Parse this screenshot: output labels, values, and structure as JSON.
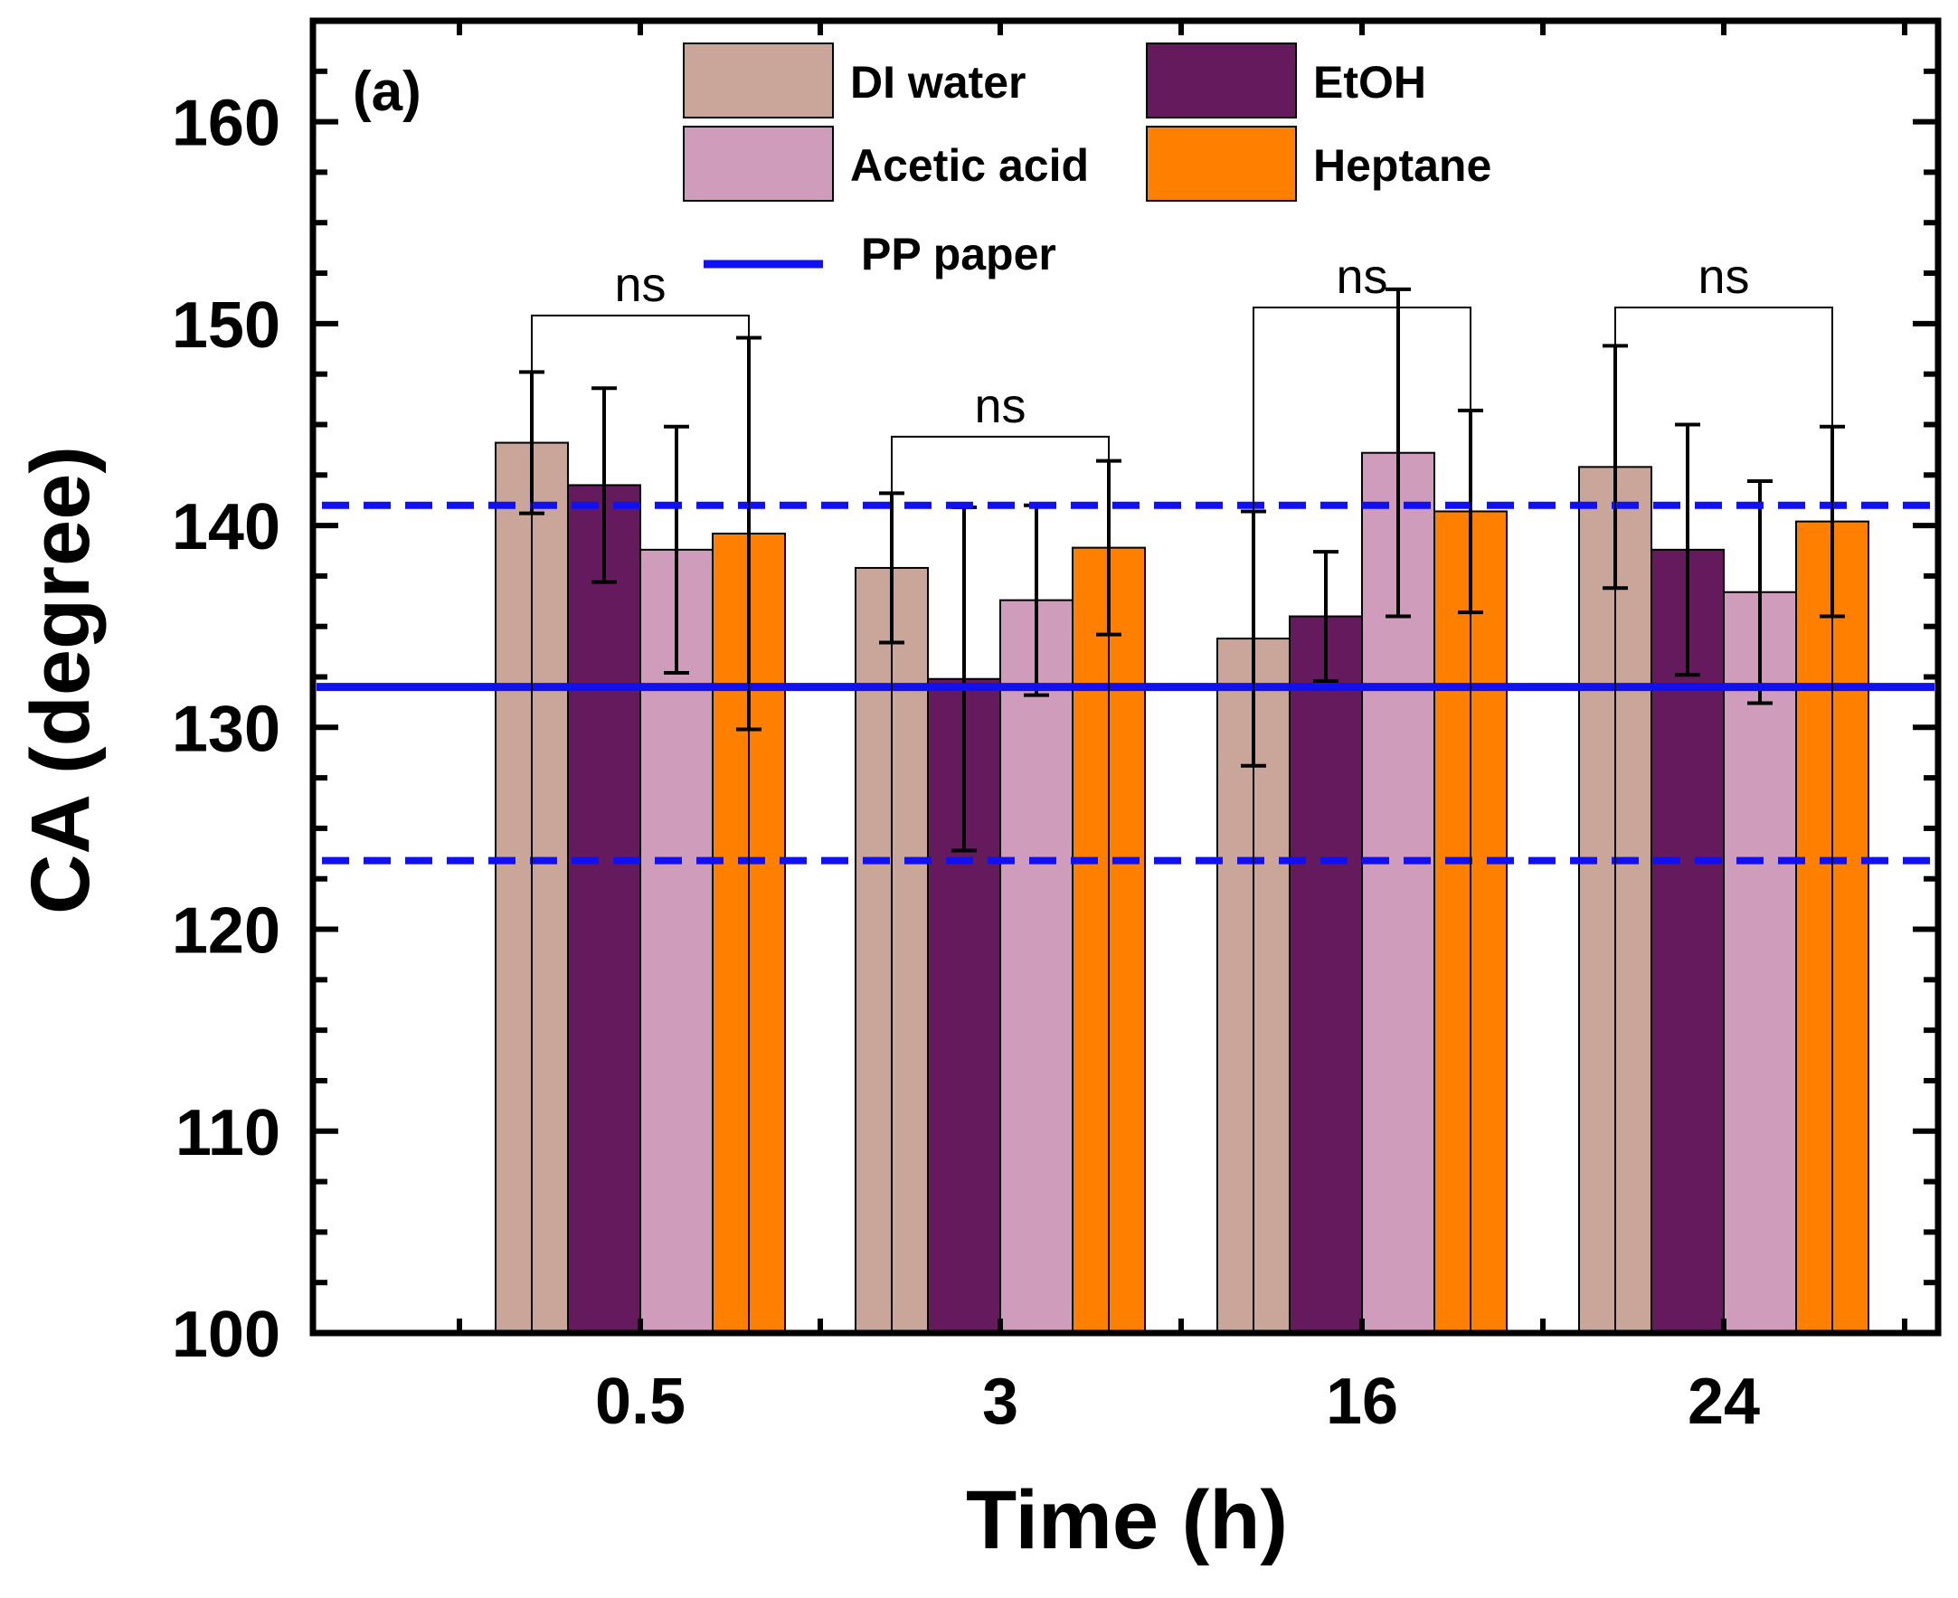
{
  "chart_data": {
    "type": "bar",
    "panel_label": "(a)",
    "xlabel": "Time (h)",
    "ylabel": "CA (degree)",
    "ylim": [
      100,
      165
    ],
    "yticks": [
      100,
      110,
      120,
      130,
      140,
      150,
      160
    ],
    "categories": [
      "0.5",
      "3",
      "16",
      "24"
    ],
    "series": [
      {
        "name": "DI water",
        "color": "#c9a59a",
        "values": [
          144.1,
          137.9,
          134.4,
          142.9
        ],
        "errors": [
          3.5,
          3.7,
          6.3,
          6.0
        ]
      },
      {
        "name": "EtOH",
        "color": "#661a5e",
        "values": [
          142.0,
          132.4,
          135.5,
          138.8
        ],
        "errors": [
          4.8,
          8.5,
          3.2,
          6.2
        ]
      },
      {
        "name": "Acetic acid",
        "color": "#cf9dbb",
        "values": [
          138.8,
          136.3,
          143.6,
          136.7
        ],
        "errors": [
          6.1,
          4.7,
          8.1,
          5.5
        ]
      },
      {
        "name": "Heptane",
        "color": "#ff8000",
        "values": [
          139.6,
          138.9,
          140.7,
          140.2
        ],
        "errors": [
          9.7,
          4.3,
          5.0,
          4.7
        ]
      }
    ],
    "reference_lines": [
      {
        "name": "PP paper",
        "style": "solid",
        "color": "#1010f0",
        "value": 132.0
      },
      {
        "name": "PP paper upper",
        "style": "dashed",
        "color": "#1010f0",
        "value": 141.0
      },
      {
        "name": "PP paper lower",
        "style": "dashed",
        "color": "#1010f0",
        "value": 123.4
      }
    ],
    "significance": [
      {
        "category": "0.5",
        "label": "ns",
        "value": 150.4
      },
      {
        "category": "3",
        "label": "ns",
        "value": 144.4
      },
      {
        "category": "16",
        "label": "ns",
        "value": 150.8
      },
      {
        "category": "24",
        "label": "ns",
        "value": 150.8
      }
    ],
    "legend": {
      "placement": "top",
      "entries": [
        "DI water",
        "EtOH",
        "Acetic acid",
        "Heptane",
        "PP paper"
      ]
    }
  }
}
